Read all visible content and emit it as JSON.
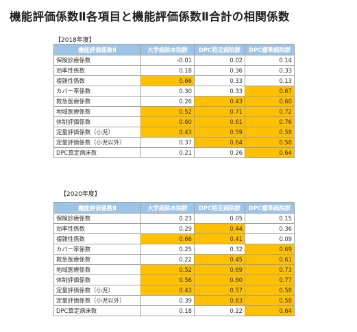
{
  "title": "機能評価係数Ⅱ各項目と機能評価係数Ⅱ合計の相関係数",
  "colors": {
    "header_bg": "#9dc3e6",
    "highlight": "#ffc000"
  },
  "tables": [
    {
      "label": "【2018年度】",
      "headers": [
        "機能評価係数Ⅱ",
        "大学病院本院群",
        "DPC特定病院群",
        "DPC標準病院群"
      ],
      "rows": [
        {
          "name": "保険診療係数",
          "values": [
            "-0.01",
            "0.02",
            "0.14"
          ],
          "highlight": [
            false,
            false,
            false
          ]
        },
        {
          "name": "効率性係数",
          "values": [
            "0.18",
            "0.36",
            "0.33"
          ],
          "highlight": [
            false,
            false,
            false
          ]
        },
        {
          "name": "複雑性係数",
          "values": [
            "0.66",
            "0.33",
            "0.13"
          ],
          "highlight": [
            true,
            false,
            false
          ]
        },
        {
          "name": "カバー率係数",
          "values": [
            "0.30",
            "0.33",
            "0.67"
          ],
          "highlight": [
            false,
            false,
            true
          ]
        },
        {
          "name": "救急医療係数",
          "values": [
            "0.26",
            "0.43",
            "0.60"
          ],
          "highlight": [
            false,
            true,
            true
          ]
        },
        {
          "name": "地域医療係数",
          "values": [
            "0.52",
            "0.71",
            "0.72"
          ],
          "highlight": [
            true,
            true,
            true
          ]
        },
        {
          "name": "体制評価係数",
          "values": [
            "0.60",
            "0.61",
            "0.76"
          ],
          "highlight": [
            true,
            true,
            true
          ]
        },
        {
          "name": "定量評価係数（小児）",
          "values": [
            "0.43",
            "0.59",
            "0.58"
          ],
          "highlight": [
            true,
            true,
            true
          ]
        },
        {
          "name": "定量評価係数（小児以外）",
          "values": [
            "0.37",
            "0.64",
            "0.58"
          ],
          "highlight": [
            false,
            true,
            true
          ]
        },
        {
          "name": "DPC算定病床数",
          "values": [
            "0.21",
            "0.26",
            "0.64"
          ],
          "highlight": [
            false,
            false,
            true
          ]
        }
      ]
    },
    {
      "label": "【2020年度】",
      "headers": [
        "機能評価係数Ⅱ",
        "大学病院本院群",
        "DPC特定病院群",
        "DPC標準病院群"
      ],
      "rows": [
        {
          "name": "保険診療係数",
          "values": [
            "0.23",
            "0.05",
            "0.15"
          ],
          "highlight": [
            false,
            false,
            false
          ]
        },
        {
          "name": "効率性係数",
          "values": [
            "0.29",
            "0.44",
            "0.36"
          ],
          "highlight": [
            false,
            true,
            false
          ]
        },
        {
          "name": "複雑性係数",
          "values": [
            "0.66",
            "0.41",
            "0.09"
          ],
          "highlight": [
            true,
            true,
            false
          ]
        },
        {
          "name": "カバー率係数",
          "values": [
            "0.25",
            "0.32",
            "0.69"
          ],
          "highlight": [
            false,
            false,
            true
          ]
        },
        {
          "name": "救急医療係数",
          "values": [
            "0.22",
            "0.45",
            "0.61"
          ],
          "highlight": [
            false,
            true,
            true
          ]
        },
        {
          "name": "地域医療係数",
          "values": [
            "0.52",
            "0.69",
            "0.73"
          ],
          "highlight": [
            true,
            true,
            true
          ]
        },
        {
          "name": "体制評価係数",
          "values": [
            "0.56",
            "0.60",
            "0.77"
          ],
          "highlight": [
            true,
            true,
            true
          ]
        },
        {
          "name": "定量評価係数（小児）",
          "values": [
            "0.43",
            "0.57",
            "0.58"
          ],
          "highlight": [
            true,
            true,
            true
          ]
        },
        {
          "name": "定量評価係数（小児以外）",
          "values": [
            "0.39",
            "0.63",
            "0.58"
          ],
          "highlight": [
            false,
            true,
            true
          ]
        },
        {
          "name": "DPC算定病床数",
          "values": [
            "0.18",
            "0.22",
            "0.64"
          ],
          "highlight": [
            false,
            false,
            true
          ]
        }
      ]
    }
  ]
}
